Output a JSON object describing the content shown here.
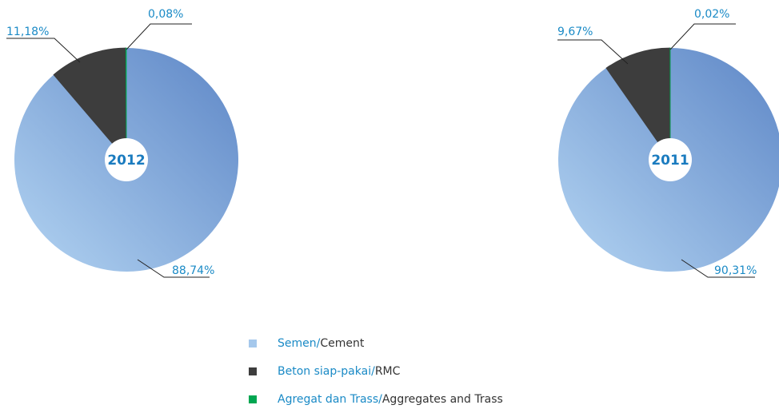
{
  "chart_data": [
    {
      "type": "pie",
      "title": "2012",
      "values": [
        88.74,
        11.18,
        0.08
      ],
      "value_labels": [
        "88,74%",
        "11,18%",
        "0,08%"
      ],
      "colors": [
        "#7fa9dd",
        "#3d3d3d",
        "#00a651"
      ]
    },
    {
      "type": "pie",
      "title": "2011",
      "values": [
        90.31,
        9.67,
        0.02
      ],
      "value_labels": [
        "90,31%",
        "9,67%",
        "0,02%"
      ],
      "colors": [
        "#7fa9dd",
        "#3d3d3d",
        "#00a651"
      ]
    }
  ],
  "legend": [
    {
      "local": "Semen/",
      "english": "Cement",
      "color": "#a5c8ec"
    },
    {
      "local": "Beton siap-pakai/",
      "english": "RMC",
      "color": "#3d3d3d"
    },
    {
      "local": "Agregat dan Trass/",
      "english": "Aggregates and Trass",
      "color": "#00a651"
    }
  ]
}
